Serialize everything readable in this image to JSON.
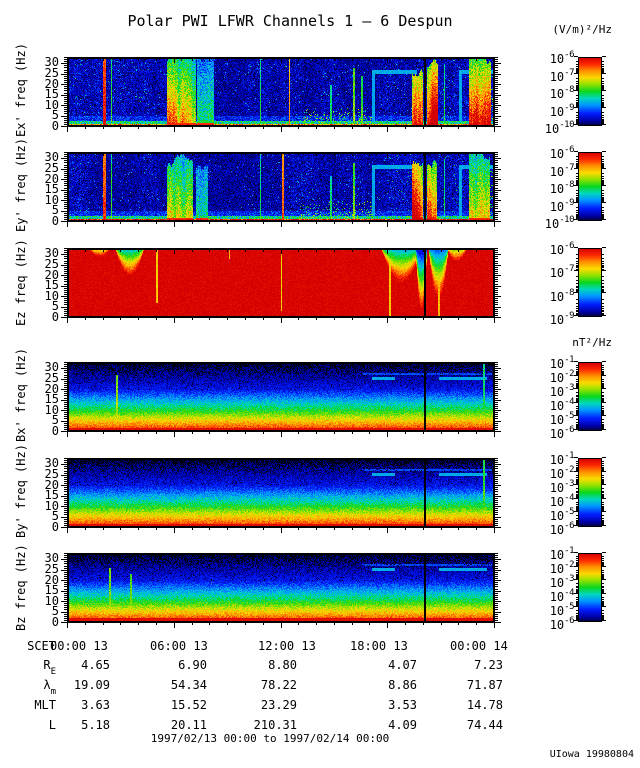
{
  "title": "Polar PWI LFWR Channels 1 — 6 Despun",
  "credit": "UIowa 19980804",
  "footer_range": "1997/02/13 00:00 to 1997/02/14 00:00",
  "units": {
    "electric": "(V/m)²/Hz",
    "magnetic": "nT²/Hz"
  },
  "freq_axis": {
    "unit": "Hz",
    "max": 33,
    "ticks": [
      30,
      25,
      20,
      15,
      10,
      5,
      0
    ]
  },
  "x_axis": {
    "label": "SCET",
    "ticks": [
      "00:00 13",
      "06:00 13",
      "12:00 13",
      "18:00 13",
      "00:00 14"
    ]
  },
  "ephemeris_rows": [
    {
      "main": "R",
      "sub": "E",
      "values": [
        "4.65",
        "6.90",
        "8.80",
        "4.07",
        "7.23"
      ]
    },
    {
      "main": "λ",
      "sub": "m",
      "values": [
        "19.09",
        "54.34",
        "78.22",
        "8.86",
        "71.87"
      ]
    },
    {
      "main": "MLT",
      "sub": "",
      "values": [
        "3.63",
        "15.52",
        "23.29",
        "3.53",
        "14.78"
      ]
    },
    {
      "main": "L",
      "sub": "",
      "values": [
        "5.18",
        "20.11",
        "210.31",
        "4.09",
        "74.44"
      ]
    }
  ],
  "chart_data": [
    {
      "type": "heatmap",
      "name": "Ex",
      "ylabel": "Ex' freq (Hz)",
      "ylim": [
        0,
        33
      ],
      "xrange": "1997/02/13 00:00 to 1997/02/14 00:00",
      "colormap": "rainbow blue(min) to red(max)",
      "colorbar": {
        "base": 10,
        "exponents": [
          -6,
          -7,
          -8,
          -9,
          -10
        ],
        "unit": "(V/m)²/Hz"
      },
      "style": "E",
      "seed": 3,
      "bottomAmp": 0.58,
      "features": [
        {
          "kind": "spike",
          "x": 0.086,
          "w": 0.006,
          "amp": 0.96
        },
        {
          "kind": "spike",
          "x": 0.103,
          "w": 0.004,
          "amp": 0.55
        },
        {
          "kind": "burst",
          "x0": 0.233,
          "x1": 0.3,
          "amp": 0.88
        },
        {
          "kind": "burst",
          "x0": 0.303,
          "x1": 0.342,
          "amp": 0.62
        },
        {
          "kind": "spike",
          "x": 0.452,
          "w": 0.004,
          "amp": 0.52
        },
        {
          "kind": "spike",
          "x": 0.52,
          "w": 0.0035,
          "amp": 0.82
        },
        {
          "kind": "speckle",
          "x0": 0.545,
          "x1": 0.715,
          "fmax": 9,
          "density": 0.3
        },
        {
          "kind": "spike",
          "x": 0.617,
          "w": 0.003,
          "amp": 0.48,
          "fmax": 20
        },
        {
          "kind": "spike",
          "x": 0.671,
          "w": 0.0045,
          "amp": 0.62,
          "fmax": 28
        },
        {
          "kind": "spike",
          "x": 0.69,
          "w": 0.003,
          "amp": 0.55,
          "fmax": 24
        },
        {
          "kind": "cyanleg",
          "x": 0.716,
          "w": 0.007
        },
        {
          "kind": "cyanline",
          "x0": 0.713,
          "x1": 0.818,
          "f": 26.2
        },
        {
          "kind": "burst",
          "x0": 0.806,
          "x1": 0.833,
          "amp": 0.97
        },
        {
          "kind": "gap",
          "x": 0.8365,
          "w": 0.005
        },
        {
          "kind": "burst",
          "x0": 0.843,
          "x1": 0.868,
          "amp": 0.92
        },
        {
          "kind": "spike",
          "x": 0.883,
          "w": 0.004,
          "amp": 0.5,
          "fmax": 30
        },
        {
          "kind": "cyanleg",
          "x": 0.92,
          "w": 0.007
        },
        {
          "kind": "cyanline",
          "x0": 0.917,
          "x1": 0.996,
          "f": 26.2
        },
        {
          "kind": "burst",
          "x0": 0.94,
          "x1": 0.992,
          "amp": 0.85
        },
        {
          "kind": "speckle",
          "x0": 0.955,
          "x1": 1.0,
          "fmax": 33,
          "density": 0.2
        }
      ]
    },
    {
      "type": "heatmap",
      "name": "Ey",
      "ylabel": "Ey' freq (Hz)",
      "ylim": [
        0,
        33
      ],
      "xrange": "1997/02/13 00:00 to 1997/02/14 00:00",
      "colormap": "rainbow blue(min) to red(max)",
      "colorbar": {
        "base": 10,
        "exponents": [
          -6,
          -7,
          -8,
          -9,
          -10
        ],
        "unit": "(V/m)²/Hz"
      },
      "style": "E",
      "seed": 8,
      "bottomAmp": 0.75,
      "features": [
        {
          "kind": "spike",
          "x": 0.086,
          "w": 0.006,
          "amp": 0.92
        },
        {
          "kind": "spike",
          "x": 0.103,
          "w": 0.004,
          "amp": 0.55
        },
        {
          "kind": "burst",
          "x0": 0.233,
          "x1": 0.295,
          "amp": 0.78
        },
        {
          "kind": "burst",
          "x0": 0.3,
          "x1": 0.33,
          "amp": 0.55
        },
        {
          "kind": "spike",
          "x": 0.452,
          "w": 0.004,
          "amp": 0.5
        },
        {
          "kind": "spike",
          "x": 0.505,
          "w": 0.0035,
          "amp": 0.88
        },
        {
          "kind": "speckle",
          "x0": 0.545,
          "x1": 0.715,
          "fmax": 10,
          "density": 0.28
        },
        {
          "kind": "spike",
          "x": 0.617,
          "w": 0.003,
          "amp": 0.48,
          "fmax": 22
        },
        {
          "kind": "spike",
          "x": 0.671,
          "w": 0.0045,
          "amp": 0.6,
          "fmax": 28
        },
        {
          "kind": "cyanleg",
          "x": 0.716,
          "w": 0.007
        },
        {
          "kind": "cyanline",
          "x0": 0.713,
          "x1": 0.818,
          "f": 26.2
        },
        {
          "kind": "burst",
          "x0": 0.806,
          "x1": 0.833,
          "amp": 0.93
        },
        {
          "kind": "gap",
          "x": 0.8365,
          "w": 0.005
        },
        {
          "kind": "burst",
          "x0": 0.843,
          "x1": 0.866,
          "amp": 0.9
        },
        {
          "kind": "spike",
          "x": 0.883,
          "w": 0.004,
          "amp": 0.48,
          "fmax": 30
        },
        {
          "kind": "cyanleg",
          "x": 0.92,
          "w": 0.007
        },
        {
          "kind": "cyanline",
          "x0": 0.917,
          "x1": 0.996,
          "f": 26.2
        },
        {
          "kind": "burst",
          "x0": 0.94,
          "x1": 0.99,
          "amp": 0.8
        },
        {
          "kind": "speckle",
          "x0": 0.95,
          "x1": 1.0,
          "fmax": 33,
          "density": 0.2
        }
      ]
    },
    {
      "type": "heatmap",
      "name": "Ez",
      "ylabel": "Ez freq (Hz)",
      "ylim": [
        0,
        33
      ],
      "xrange": "1997/02/13 00:00 to 1997/02/14 00:00",
      "colormap": "rainbow blue(min) to red(max)",
      "colorbar": {
        "base": 10,
        "exponents": [
          -6,
          -7,
          -8,
          -9
        ],
        "unit": "(V/m)²/Hz"
      },
      "style": "Ez",
      "seed": 12,
      "bottomAmp": 0,
      "features": [
        {
          "kind": "dip",
          "x0": 0.05,
          "x1": 0.1,
          "depth": 4,
          "min": 0.62
        },
        {
          "kind": "dip",
          "x0": 0.112,
          "x1": 0.18,
          "depth": 13,
          "min": 0.34
        },
        {
          "kind": "topline",
          "x": 0.21,
          "depth": 26,
          "amp": 0.72,
          "w": 0.004
        },
        {
          "kind": "topline",
          "x": 0.38,
          "depth": 5,
          "amp": 0.72,
          "w": 0.003
        },
        {
          "kind": "topline",
          "x": 0.502,
          "depth": 30,
          "amp": 0.7,
          "w": 0.003
        },
        {
          "kind": "dip",
          "x0": 0.735,
          "x1": 0.83,
          "depth": 16,
          "min": 0.3
        },
        {
          "kind": "topline",
          "x": 0.755,
          "depth": 33,
          "amp": 0.72,
          "w": 0.004
        },
        {
          "kind": "dip",
          "x0": 0.815,
          "x1": 0.843,
          "depth": 30,
          "min": 0.08
        },
        {
          "kind": "gap",
          "x": 0.8365,
          "w": 0.005
        },
        {
          "kind": "dip",
          "x0": 0.845,
          "x1": 0.893,
          "depth": 24,
          "min": 0.22
        },
        {
          "kind": "topline",
          "x": 0.871,
          "depth": 33,
          "amp": 0.75,
          "w": 0.005
        },
        {
          "kind": "dip",
          "x0": 0.888,
          "x1": 0.935,
          "depth": 6,
          "min": 0.55
        }
      ]
    },
    {
      "type": "heatmap",
      "name": "Bx",
      "ylabel": "Bx' freq (Hz)",
      "ylim": [
        0,
        33
      ],
      "xrange": "1997/02/13 00:00 to 1997/02/14 00:00",
      "colormap": "rainbow blue(min) to red(max)",
      "colorbar": {
        "base": 10,
        "exponents": [
          -1,
          -2,
          -3,
          -4,
          -5,
          -6
        ],
        "unit": "nT²/Hz"
      },
      "style": "B",
      "seed": 21,
      "redBase": 1.6,
      "features": [
        {
          "kind": "spike",
          "x": 0.116,
          "w": 0.004,
          "amp": 0.66,
          "fmax": 27
        },
        {
          "kind": "fainthline",
          "x0": 0.69,
          "x1": 0.995,
          "f": 27.6
        },
        {
          "kind": "cyanline",
          "x0": 0.713,
          "x1": 0.767,
          "f": 25.3
        },
        {
          "kind": "cyanline",
          "x0": 0.871,
          "x1": 0.982,
          "f": 25.3
        },
        {
          "kind": "gap",
          "x": 0.8365,
          "w": 0.004
        },
        {
          "kind": "spike",
          "x": 0.976,
          "w": 0.0045,
          "amp": 0.52,
          "fmax": 33
        }
      ]
    },
    {
      "type": "heatmap",
      "name": "By",
      "ylabel": "By' freq (Hz)",
      "ylim": [
        0,
        33
      ],
      "xrange": "1997/02/13 00:00 to 1997/02/14 00:00",
      "colormap": "rainbow blue(min) to red(max)",
      "colorbar": {
        "base": 10,
        "exponents": [
          -1,
          -2,
          -3,
          -4,
          -5,
          -6
        ],
        "unit": "nT²/Hz"
      },
      "style": "B",
      "seed": 22,
      "redBase": 1.8,
      "features": [
        {
          "kind": "fainthline",
          "x0": 0.69,
          "x1": 0.995,
          "f": 27.6
        },
        {
          "kind": "cyanline",
          "x0": 0.713,
          "x1": 0.767,
          "f": 25.3
        },
        {
          "kind": "cyanline",
          "x0": 0.871,
          "x1": 0.982,
          "f": 25.3
        },
        {
          "kind": "gap",
          "x": 0.8365,
          "w": 0.004
        },
        {
          "kind": "spike",
          "x": 0.976,
          "w": 0.0045,
          "amp": 0.58,
          "fmax": 33
        }
      ]
    },
    {
      "type": "heatmap",
      "name": "Bz",
      "ylabel": "Bz freq (Hz)",
      "ylim": [
        0,
        33
      ],
      "xrange": "1997/02/13 00:00 to 1997/02/14 00:00",
      "colormap": "rainbow blue(min) to red(max)",
      "colorbar": {
        "base": 10,
        "exponents": [
          -1,
          -2,
          -3,
          -4,
          -5,
          -6
        ],
        "unit": "nT²/Hz"
      },
      "style": "B",
      "seed": 23,
      "redBase": 2.2,
      "features": [
        {
          "kind": "spike",
          "x": 0.1,
          "w": 0.0045,
          "amp": 0.62,
          "fmax": 26
        },
        {
          "kind": "spike",
          "x": 0.148,
          "w": 0.0045,
          "amp": 0.6,
          "fmax": 23
        },
        {
          "kind": "fainthline",
          "x0": 0.69,
          "x1": 0.995,
          "f": 27.6
        },
        {
          "kind": "cyanline",
          "x0": 0.713,
          "x1": 0.767,
          "f": 25.3
        },
        {
          "kind": "cyanline",
          "x0": 0.871,
          "x1": 0.982,
          "f": 25.3
        },
        {
          "kind": "gap",
          "x": 0.8365,
          "w": 0.004
        }
      ]
    }
  ]
}
